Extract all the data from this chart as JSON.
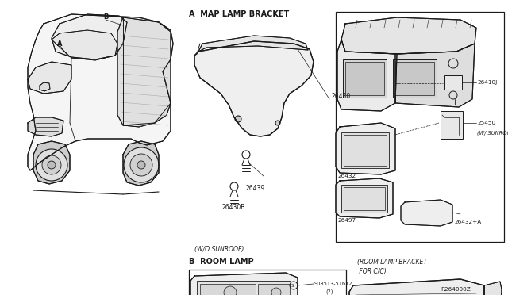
{
  "bg_color": "#ffffff",
  "line_color": "#1a1a1a",
  "diagram_ref": "R264000Z",
  "section_a_label": "A  MAP LAMP BRACKET",
  "section_b_label": "B  ROOM LAMP",
  "wo_sunroof": "(W/O SUNROOF)",
  "w_sunroof": "(W/ SUNROOF)",
  "room_lamp_bracket_line1": "(ROOM LAMP BRACKET",
  "room_lamp_bracket_line2": " FOR C/C)",
  "figsize": [
    6.4,
    3.72
  ],
  "dpi": 100
}
